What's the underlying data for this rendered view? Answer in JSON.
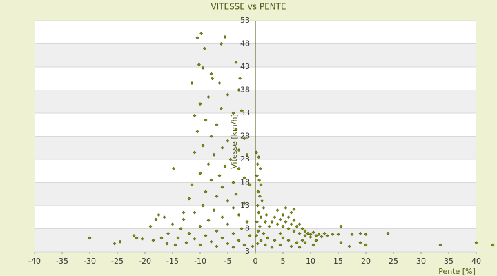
{
  "chart_data": {
    "type": "scatter",
    "title": "VITESSE vs PENTE",
    "x_label": "Pente [%]",
    "y_label": "Vitesse [km/h]",
    "color": "#7f8f00",
    "xlim": [
      -40,
      40
    ],
    "xticks": [
      -40,
      -35,
      -30,
      -25,
      -20,
      -15,
      -10,
      -5,
      0,
      5,
      10,
      15,
      20,
      25,
      30,
      35,
      40
    ],
    "ylim": [
      3,
      53
    ],
    "yticks": [
      3,
      8,
      13,
      18,
      23,
      28,
      33,
      38,
      43,
      48,
      53
    ],
    "grid": true,
    "x": [
      -10.5,
      -9.8,
      -5.5,
      -6.2,
      -9.2,
      -10.2,
      -9.5,
      -8,
      -7.8,
      -11.5,
      -6.5,
      -3.5,
      -2.8,
      -3,
      -5,
      -8.5,
      -10,
      -6.2,
      -4,
      -2.5,
      -11,
      -9,
      -7,
      -3.5,
      -10.5,
      -8,
      -5,
      -2,
      -9.5,
      -6,
      -3,
      -11,
      -7.5,
      -4.5,
      -1.5,
      -8.5,
      -5.5,
      -14.8,
      -3,
      -10,
      -6.5,
      -2,
      -8,
      -4,
      -11.5,
      -6,
      -1,
      -9,
      -3.5,
      -7,
      -12,
      -5,
      -2,
      -9.5,
      -4,
      -7.5,
      -11,
      -3,
      -6,
      -13,
      -8.5,
      -1.5,
      -5,
      -10,
      -2.5,
      -7,
      -12,
      -4,
      -9,
      -1,
      -6,
      -11,
      -3,
      -8,
      -5,
      -10,
      -2,
      -7,
      -4,
      -0.5,
      0.2,
      0.6,
      0.4,
      0.9,
      0.3,
      0.7,
      1,
      0.5,
      0.8,
      1.2,
      0.4,
      1.5,
      0.6,
      2,
      1,
      0.3,
      1.8,
      0.8,
      2.5,
      0.5,
      1.5,
      0.2,
      2.2,
      1,
      0.4,
      1.8,
      3,
      3,
      3.5,
      4,
      4.5,
      5,
      5,
      5.5,
      6,
      6,
      6.5,
      7,
      7,
      7.5,
      8,
      8,
      8.5,
      9,
      9,
      9.5,
      10,
      10,
      10.5,
      11,
      11.5,
      12,
      12.5,
      13,
      14,
      4,
      5.5,
      6.5,
      7,
      4.5,
      5,
      6,
      7.5,
      8.5,
      3.5,
      4.5,
      6.5,
      8,
      10.5,
      9,
      11,
      15,
      15.5,
      15.5,
      17,
      17.5,
      19,
      19,
      20,
      20,
      24,
      33.5,
      40,
      43,
      -30,
      -25.5,
      -24.5,
      -22,
      -21.5,
      -20.5,
      -19,
      -18.5,
      -18,
      -17.5,
      -17,
      -16.5,
      -15.8,
      -15,
      -14,
      -13.5,
      -13,
      -12.5,
      -14.5,
      -16
    ],
    "values": [
      49.3,
      50.2,
      49.5,
      48,
      47,
      43.5,
      42.8,
      41.5,
      40.5,
      39.5,
      39.5,
      44,
      40.5,
      38,
      37,
      36.5,
      35,
      34,
      33,
      33.5,
      32.5,
      31.5,
      30.5,
      29.5,
      29,
      28,
      27,
      27.5,
      26,
      25.5,
      25,
      24.5,
      24,
      23,
      24,
      22,
      21.5,
      21,
      21,
      20,
      19.5,
      19,
      18.5,
      18,
      17.5,
      17,
      17.5,
      16,
      15.5,
      15,
      14.5,
      14,
      13.5,
      13,
      12.5,
      12,
      11.5,
      11,
      10.5,
      10,
      9.8,
      9.5,
      9,
      8.5,
      8,
      7.5,
      7,
      7,
      6.5,
      6.5,
      6,
      5.8,
      5.5,
      5.2,
      4.8,
      4.5,
      4.5,
      4.2,
      4,
      4.2,
      24.5,
      23.5,
      22,
      21,
      19.5,
      18.5,
      17.5,
      16,
      15,
      14,
      13,
      12.5,
      11.5,
      11,
      10.5,
      9.5,
      9.5,
      8.5,
      8.5,
      7.5,
      7,
      6.5,
      6,
      5.5,
      4.8,
      4.5,
      4,
      9.5,
      10.5,
      9,
      10,
      11,
      8.5,
      9.5,
      10.5,
      8,
      9,
      9.8,
      7.5,
      8.5,
      9,
      7,
      8,
      7.5,
      6.5,
      7,
      6.8,
      6.2,
      7.2,
      6.5,
      6.8,
      6.3,
      7,
      6.5,
      6.8,
      12,
      12.5,
      11.5,
      12.2,
      7,
      6,
      5.5,
      5,
      5.5,
      5.5,
      4.5,
      4.2,
      4,
      4.5,
      5,
      5.5,
      6.8,
      5,
      8.5,
      4.2,
      6.8,
      5,
      7,
      6.8,
      4.5,
      7,
      4.5,
      5,
      4.5,
      6,
      4.8,
      5.2,
      6.5,
      6,
      5.8,
      8.5,
      5.5,
      10,
      11,
      6,
      10.5,
      7,
      9,
      6,
      8,
      11.5,
      5,
      4.5,
      4.8
    ]
  }
}
